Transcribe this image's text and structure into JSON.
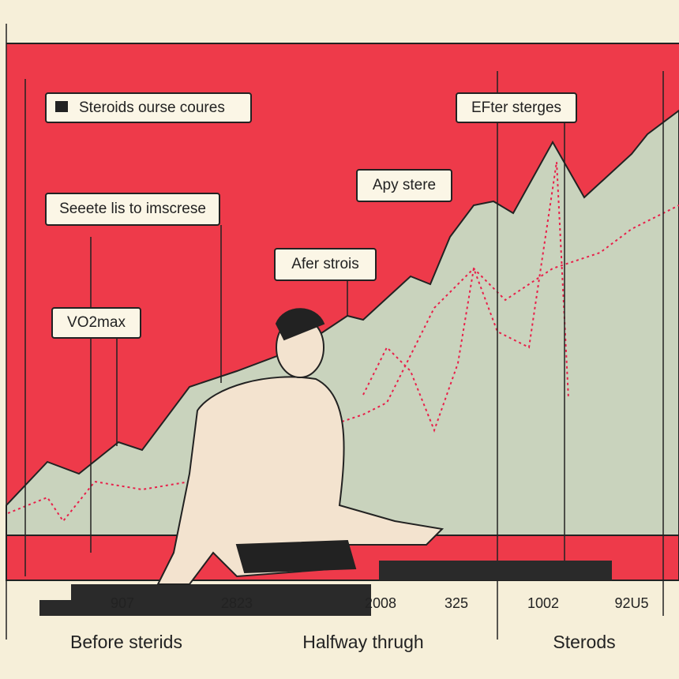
{
  "callouts": [
    "Steroids ourse coures",
    "EFter sterges",
    "Apy stere",
    "Seeete lis to imscrese",
    "Afer strois",
    "VO2max"
  ],
  "axis_numbers": [
    "907",
    "2823",
    "2008",
    "325",
    "1002",
    "92U5"
  ],
  "bottom_labels": [
    "Before sterids",
    "Halfway thrugh",
    "Sterods"
  ]
}
